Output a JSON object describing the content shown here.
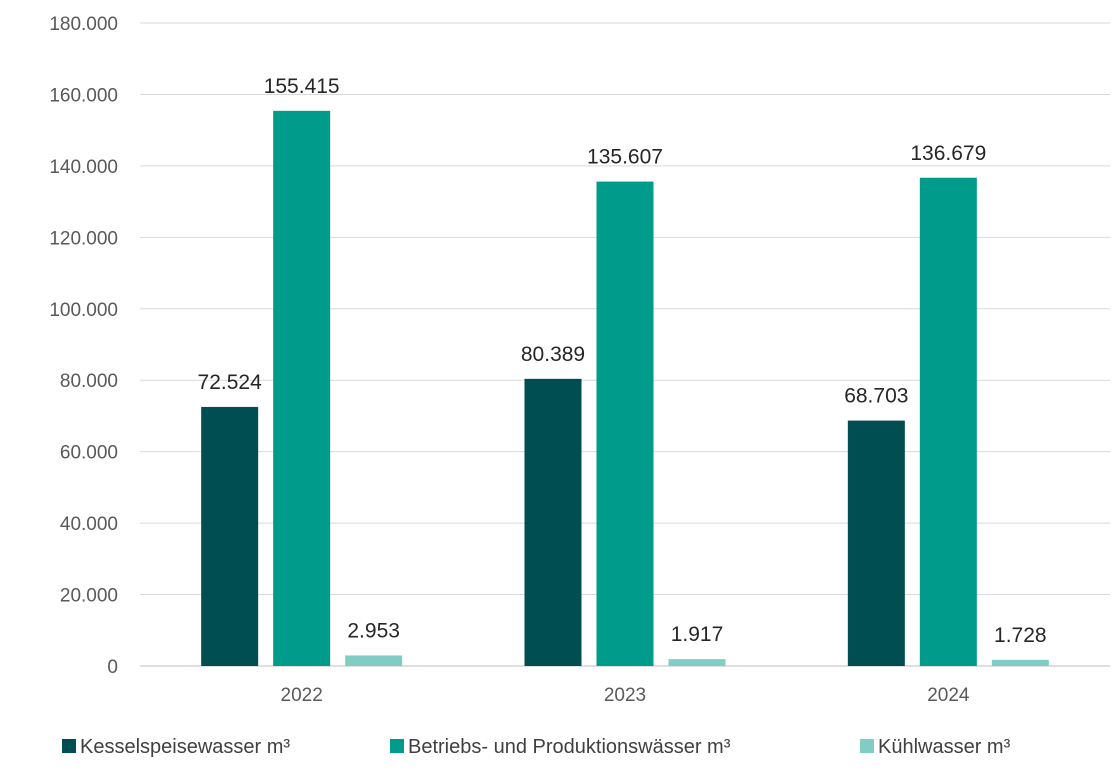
{
  "chart_data": {
    "type": "bar",
    "categories": [
      "2022",
      "2023",
      "2024"
    ],
    "series": [
      {
        "name": "Kesselspeisewasser m³",
        "color": "#004d52",
        "values": [
          72524,
          80389,
          68703
        ],
        "labels": [
          "72.524",
          "80.389",
          "68.703"
        ]
      },
      {
        "name": "Betriebs- und Produktionswässer m³",
        "color": "#009b8a",
        "values": [
          155415,
          135607,
          136679
        ],
        "labels": [
          "155.415",
          "135.607",
          "136.679"
        ]
      },
      {
        "name": "Kühlwasser m³",
        "color": "#7fcdc4",
        "values": [
          2953,
          1917,
          1728
        ],
        "labels": [
          "2.953",
          "1.917",
          "1.728"
        ]
      }
    ],
    "y_ticks": [
      {
        "value": 0,
        "label": "0"
      },
      {
        "value": 20000,
        "label": "20.000"
      },
      {
        "value": 40000,
        "label": "40.000"
      },
      {
        "value": 60000,
        "label": "60.000"
      },
      {
        "value": 80000,
        "label": "80.000"
      },
      {
        "value": 100000,
        "label": "100.000"
      },
      {
        "value": 120000,
        "label": "120.000"
      },
      {
        "value": 140000,
        "label": "140.000"
      },
      {
        "value": 160000,
        "label": "160.000"
      },
      {
        "value": 180000,
        "label": "180.000"
      }
    ],
    "ylim": [
      0,
      180000
    ],
    "grid": true,
    "legend_position": "bottom"
  }
}
